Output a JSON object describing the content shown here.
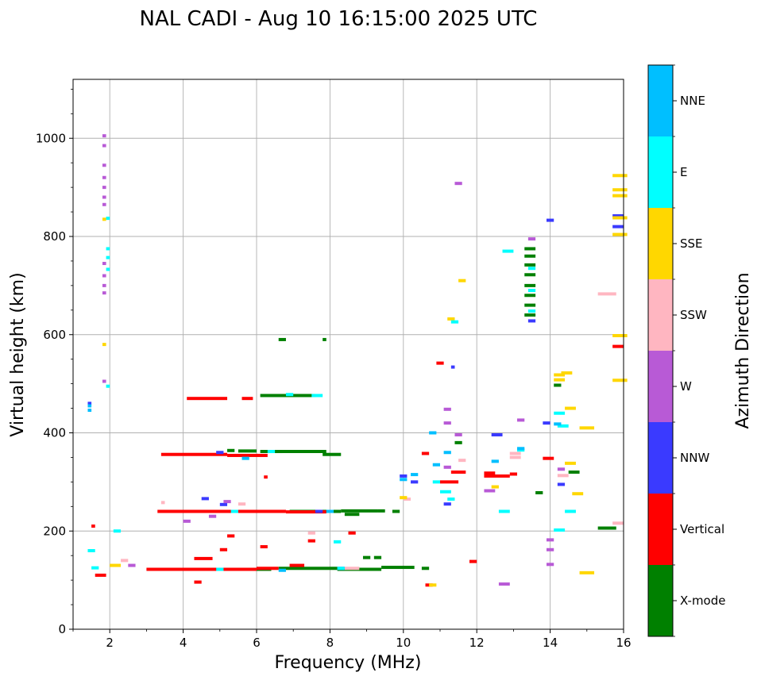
{
  "colors": {
    "X-mode": "#008000",
    "Vertical": "#ff0000",
    "NNW": "#3a3aff",
    "W": "#b85ad6",
    "SSW": "#ffb6c1",
    "SSE": "#ffd700",
    "E": "#00ffff",
    "NNE": "#00bfff"
  },
  "chart_data": {
    "type": "scatter",
    "title": "NAL CADI - Aug 10 16:15:00 2025 UTC",
    "xlabel": "Frequency (MHz)",
    "ylabel": "Virtual height (km)",
    "xlim": [
      1,
      16
    ],
    "ylim": [
      0,
      1120
    ],
    "xticks": [
      2,
      4,
      6,
      8,
      10,
      12,
      14,
      16
    ],
    "yticks": [
      0,
      200,
      400,
      600,
      800,
      1000
    ],
    "xtick_labels": [
      "2",
      "4",
      "6",
      "8",
      "10",
      "12",
      "14",
      "16"
    ],
    "ytick_labels": [
      "0",
      "200",
      "400",
      "600",
      "800",
      "1000"
    ],
    "grid": true,
    "colorbar": {
      "title": "Azimuth Direction",
      "categories": [
        "X-mode",
        "Vertical",
        "NNW",
        "W",
        "SSW",
        "SSE",
        "E",
        "NNE"
      ]
    },
    "series": [
      {
        "name": "X-mode",
        "segments": [
          [
            6.6,
            8.2,
            124
          ],
          [
            8.2,
            9.4,
            122
          ],
          [
            9.4,
            10.3,
            126
          ],
          [
            10.5,
            10.7,
            124
          ],
          [
            5.9,
            6.4,
            122
          ],
          [
            6.1,
            7.9,
            362
          ],
          [
            5.5,
            6.0,
            363
          ],
          [
            7.8,
            8.3,
            356
          ],
          [
            6.1,
            7.6,
            476
          ],
          [
            6.9,
            8.3,
            240
          ],
          [
            8.3,
            9.3,
            241
          ],
          [
            8.4,
            8.8,
            234
          ],
          [
            9.3,
            9.5,
            241
          ],
          [
            9.7,
            9.9,
            240
          ],
          [
            9.2,
            9.4,
            146
          ],
          [
            8.9,
            9.1,
            146
          ],
          [
            6.6,
            6.8,
            590
          ],
          [
            7.8,
            7.9,
            590
          ],
          [
            13.3,
            13.6,
            775
          ],
          [
            13.3,
            13.6,
            760
          ],
          [
            13.3,
            13.6,
            742
          ],
          [
            13.3,
            13.6,
            722
          ],
          [
            13.3,
            13.6,
            700
          ],
          [
            13.3,
            13.6,
            680
          ],
          [
            13.3,
            13.6,
            660
          ],
          [
            13.3,
            13.6,
            640
          ],
          [
            13.6,
            13.8,
            278
          ],
          [
            14.5,
            14.8,
            320
          ],
          [
            14.1,
            14.3,
            497
          ],
          [
            15.3,
            15.8,
            206
          ],
          [
            11.4,
            11.6,
            380
          ],
          [
            5.2,
            5.4,
            364
          ],
          [
            6.5,
            6.7,
            362
          ]
        ]
      },
      {
        "name": "Vertical",
        "segments": [
          [
            3.0,
            6.0,
            122
          ],
          [
            6.0,
            6.6,
            124
          ],
          [
            4.1,
            5.2,
            470
          ],
          [
            5.6,
            5.9,
            470
          ],
          [
            3.4,
            5.2,
            356
          ],
          [
            5.2,
            6.3,
            354
          ],
          [
            3.3,
            6.8,
            240
          ],
          [
            6.8,
            7.6,
            239
          ],
          [
            7.6,
            7.9,
            239
          ],
          [
            4.3,
            4.8,
            144
          ],
          [
            6.9,
            7.3,
            130
          ],
          [
            1.5,
            1.6,
            210
          ],
          [
            1.6,
            1.9,
            110
          ],
          [
            12.2,
            12.9,
            312
          ],
          [
            12.2,
            12.5,
            318
          ],
          [
            15.7,
            16.0,
            576
          ],
          [
            10.9,
            11.1,
            542
          ],
          [
            10.5,
            10.7,
            358
          ],
          [
            11.3,
            11.7,
            320
          ],
          [
            11.0,
            11.5,
            300
          ],
          [
            13.8,
            14.1,
            348
          ],
          [
            12.9,
            13.1,
            316
          ],
          [
            11.8,
            12.0,
            138
          ],
          [
            6.1,
            6.3,
            168
          ],
          [
            5.2,
            5.4,
            190
          ],
          [
            5.0,
            5.2,
            162
          ],
          [
            4.3,
            4.5,
            96
          ],
          [
            3.7,
            3.9,
            240
          ],
          [
            8.5,
            8.7,
            196
          ],
          [
            6.2,
            6.3,
            310
          ],
          [
            10.6,
            10.8,
            90
          ],
          [
            7.4,
            7.6,
            180
          ]
        ]
      },
      {
        "name": "NNW",
        "segments": [
          [
            13.9,
            14.1,
            833
          ],
          [
            15.7,
            16.0,
            820
          ],
          [
            15.7,
            16.0,
            842
          ],
          [
            12.4,
            12.7,
            396
          ],
          [
            13.8,
            14.0,
            420
          ],
          [
            14.2,
            14.4,
            295
          ],
          [
            9.9,
            10.1,
            312
          ],
          [
            10.2,
            10.4,
            300
          ],
          [
            11.3,
            11.4,
            534
          ],
          [
            7.6,
            7.8,
            240
          ],
          [
            8.2,
            8.4,
            124
          ],
          [
            1.4,
            1.5,
            460
          ],
          [
            4.5,
            4.7,
            266
          ],
          [
            5.0,
            5.2,
            254
          ],
          [
            11.1,
            11.3,
            255
          ],
          [
            13.4,
            13.6,
            628
          ],
          [
            4.9,
            5.1,
            360
          ]
        ]
      },
      {
        "name": "W",
        "segments": [
          [
            1.8,
            1.9,
            1005
          ],
          [
            1.8,
            1.9,
            985
          ],
          [
            1.8,
            1.9,
            945
          ],
          [
            1.8,
            1.9,
            920
          ],
          [
            1.8,
            1.9,
            900
          ],
          [
            1.8,
            1.9,
            880
          ],
          [
            1.8,
            1.9,
            865
          ],
          [
            1.8,
            1.9,
            745
          ],
          [
            1.8,
            1.9,
            720
          ],
          [
            1.8,
            1.9,
            700
          ],
          [
            1.8,
            1.9,
            685
          ],
          [
            1.8,
            1.9,
            505
          ],
          [
            11.4,
            11.6,
            908
          ],
          [
            13.4,
            13.6,
            795
          ],
          [
            12.6,
            12.9,
            92
          ],
          [
            13.1,
            13.3,
            426
          ],
          [
            11.4,
            11.6,
            396
          ],
          [
            11.1,
            11.3,
            448
          ],
          [
            11.1,
            11.3,
            420
          ],
          [
            13.9,
            14.1,
            182
          ],
          [
            13.9,
            14.1,
            162
          ],
          [
            13.9,
            14.1,
            132
          ],
          [
            14.2,
            14.4,
            326
          ],
          [
            4.7,
            4.9,
            230
          ],
          [
            4.0,
            4.2,
            220
          ],
          [
            2.5,
            2.7,
            130
          ],
          [
            5.1,
            5.3,
            260
          ],
          [
            12.2,
            12.5,
            282
          ],
          [
            11.1,
            11.3,
            330
          ]
        ]
      },
      {
        "name": "SSW",
        "segments": [
          [
            15.7,
            16.0,
            216
          ],
          [
            15.3,
            15.8,
            683
          ],
          [
            12.9,
            13.2,
            350
          ],
          [
            12.9,
            13.2,
            358
          ],
          [
            7.4,
            7.6,
            196
          ],
          [
            2.3,
            2.5,
            140
          ],
          [
            3.4,
            3.5,
            258
          ],
          [
            8.4,
            8.8,
            124
          ],
          [
            10.0,
            10.2,
            265
          ],
          [
            11.5,
            11.7,
            344
          ],
          [
            5.5,
            5.7,
            255
          ],
          [
            14.2,
            14.5,
            313
          ]
        ]
      },
      {
        "name": "SSE",
        "segments": [
          [
            15.7,
            16.1,
            924
          ],
          [
            15.7,
            16.1,
            895
          ],
          [
            15.7,
            16.1,
            883
          ],
          [
            15.7,
            16.1,
            838
          ],
          [
            15.7,
            16.1,
            804
          ],
          [
            15.7,
            16.1,
            598
          ],
          [
            15.7,
            16.1,
            507
          ],
          [
            14.1,
            14.4,
            518
          ],
          [
            14.1,
            14.4,
            508
          ],
          [
            14.3,
            14.6,
            522
          ],
          [
            14.4,
            14.7,
            450
          ],
          [
            14.8,
            15.2,
            410
          ],
          [
            14.8,
            15.2,
            115
          ],
          [
            11.5,
            11.7,
            710
          ],
          [
            11.2,
            11.4,
            632
          ],
          [
            14.6,
            14.9,
            276
          ],
          [
            14.4,
            14.7,
            338
          ],
          [
            12.4,
            12.6,
            290
          ],
          [
            9.9,
            10.1,
            268
          ],
          [
            10.7,
            10.9,
            90
          ],
          [
            1.8,
            1.9,
            835
          ],
          [
            1.8,
            1.9,
            580
          ],
          [
            2.0,
            2.3,
            130
          ]
        ]
      },
      {
        "name": "E",
        "segments": [
          [
            1.9,
            2.0,
            837
          ],
          [
            1.9,
            2.0,
            775
          ],
          [
            1.9,
            2.0,
            757
          ],
          [
            1.9,
            2.0,
            733
          ],
          [
            1.9,
            2.0,
            495
          ],
          [
            12.7,
            13.0,
            770
          ],
          [
            11.3,
            11.5,
            626
          ],
          [
            13.4,
            13.6,
            648
          ],
          [
            13.4,
            13.6,
            690
          ],
          [
            13.4,
            13.6,
            735
          ],
          [
            14.1,
            14.4,
            440
          ],
          [
            14.2,
            14.5,
            414
          ],
          [
            12.6,
            12.9,
            240
          ],
          [
            14.4,
            14.7,
            240
          ],
          [
            14.1,
            14.4,
            202
          ],
          [
            6.3,
            6.5,
            362
          ],
          [
            7.5,
            7.8,
            476
          ],
          [
            6.8,
            7.0,
            478
          ],
          [
            8.1,
            8.3,
            178
          ],
          [
            8.2,
            8.4,
            124
          ],
          [
            2.1,
            2.3,
            200
          ],
          [
            1.4,
            1.6,
            160
          ],
          [
            1.5,
            1.7,
            125
          ],
          [
            11.0,
            11.3,
            280
          ],
          [
            11.2,
            11.4,
            265
          ],
          [
            13.1,
            13.3,
            365
          ],
          [
            10.8,
            11.0,
            300
          ],
          [
            5.3,
            5.5,
            240
          ],
          [
            4.9,
            5.1,
            122
          ]
        ]
      },
      {
        "name": "NNE",
        "segments": [
          [
            1.4,
            1.5,
            446
          ],
          [
            1.4,
            1.5,
            455
          ],
          [
            9.9,
            10.1,
            305
          ],
          [
            10.2,
            10.4,
            315
          ],
          [
            10.7,
            10.9,
            400
          ],
          [
            10.8,
            11.0,
            335
          ],
          [
            13.1,
            13.3,
            368
          ],
          [
            14.1,
            14.3,
            418
          ],
          [
            5.6,
            5.8,
            348
          ],
          [
            7.9,
            8.1,
            240
          ],
          [
            6.6,
            6.8,
            120
          ],
          [
            11.1,
            11.3,
            360
          ],
          [
            12.4,
            12.6,
            342
          ]
        ]
      }
    ]
  }
}
